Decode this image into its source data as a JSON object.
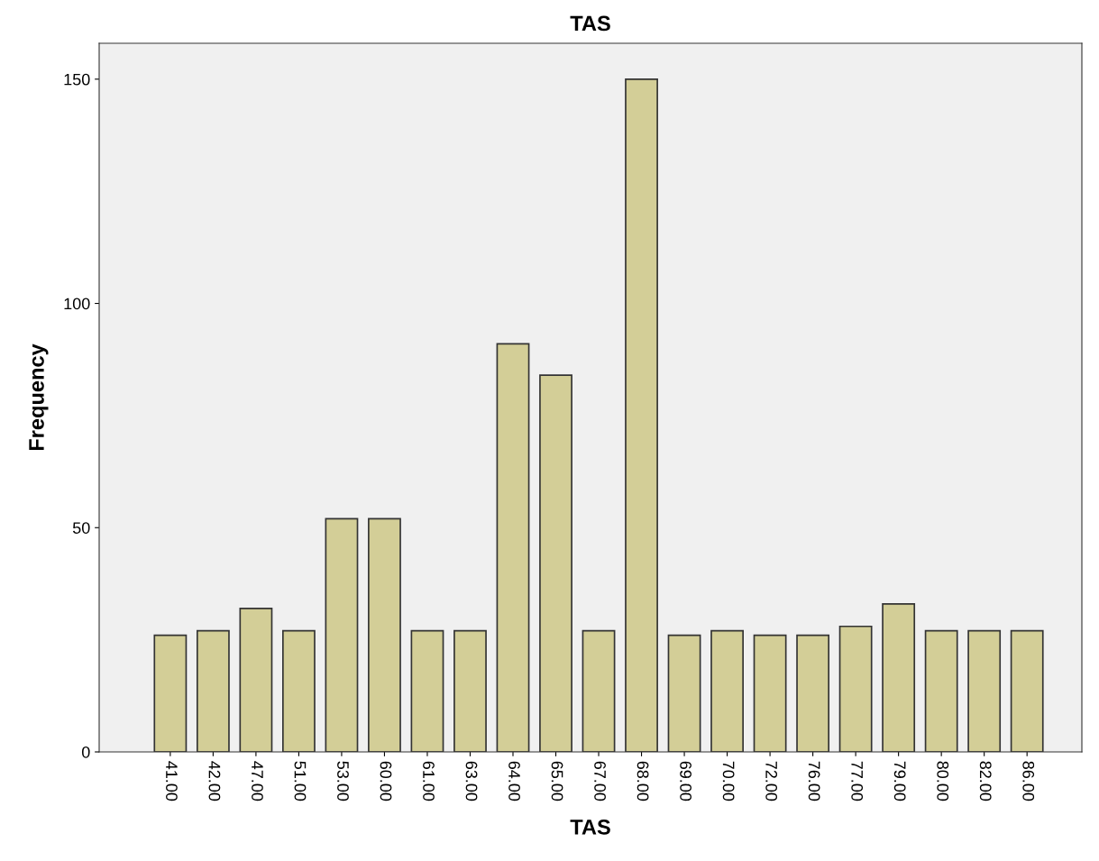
{
  "chart_data": {
    "type": "bar",
    "title": "TAS",
    "xlabel": "TAS",
    "ylabel": "Frequency",
    "categories": [
      "41.00",
      "42.00",
      "47.00",
      "51.00",
      "53.00",
      "60.00",
      "61.00",
      "63.00",
      "64.00",
      "65.00",
      "67.00",
      "68.00",
      "69.00",
      "70.00",
      "72.00",
      "76.00",
      "77.00",
      "79.00",
      "80.00",
      "82.00",
      "86.00"
    ],
    "values": [
      26,
      27,
      32,
      27,
      52,
      52,
      27,
      27,
      91,
      84,
      27,
      150,
      26,
      27,
      26,
      26,
      28,
      33,
      27,
      27,
      27
    ],
    "color": "#d3ce97",
    "ylim": [
      0,
      158
    ],
    "yticks": [
      0,
      50,
      100,
      150
    ],
    "grid": false
  }
}
